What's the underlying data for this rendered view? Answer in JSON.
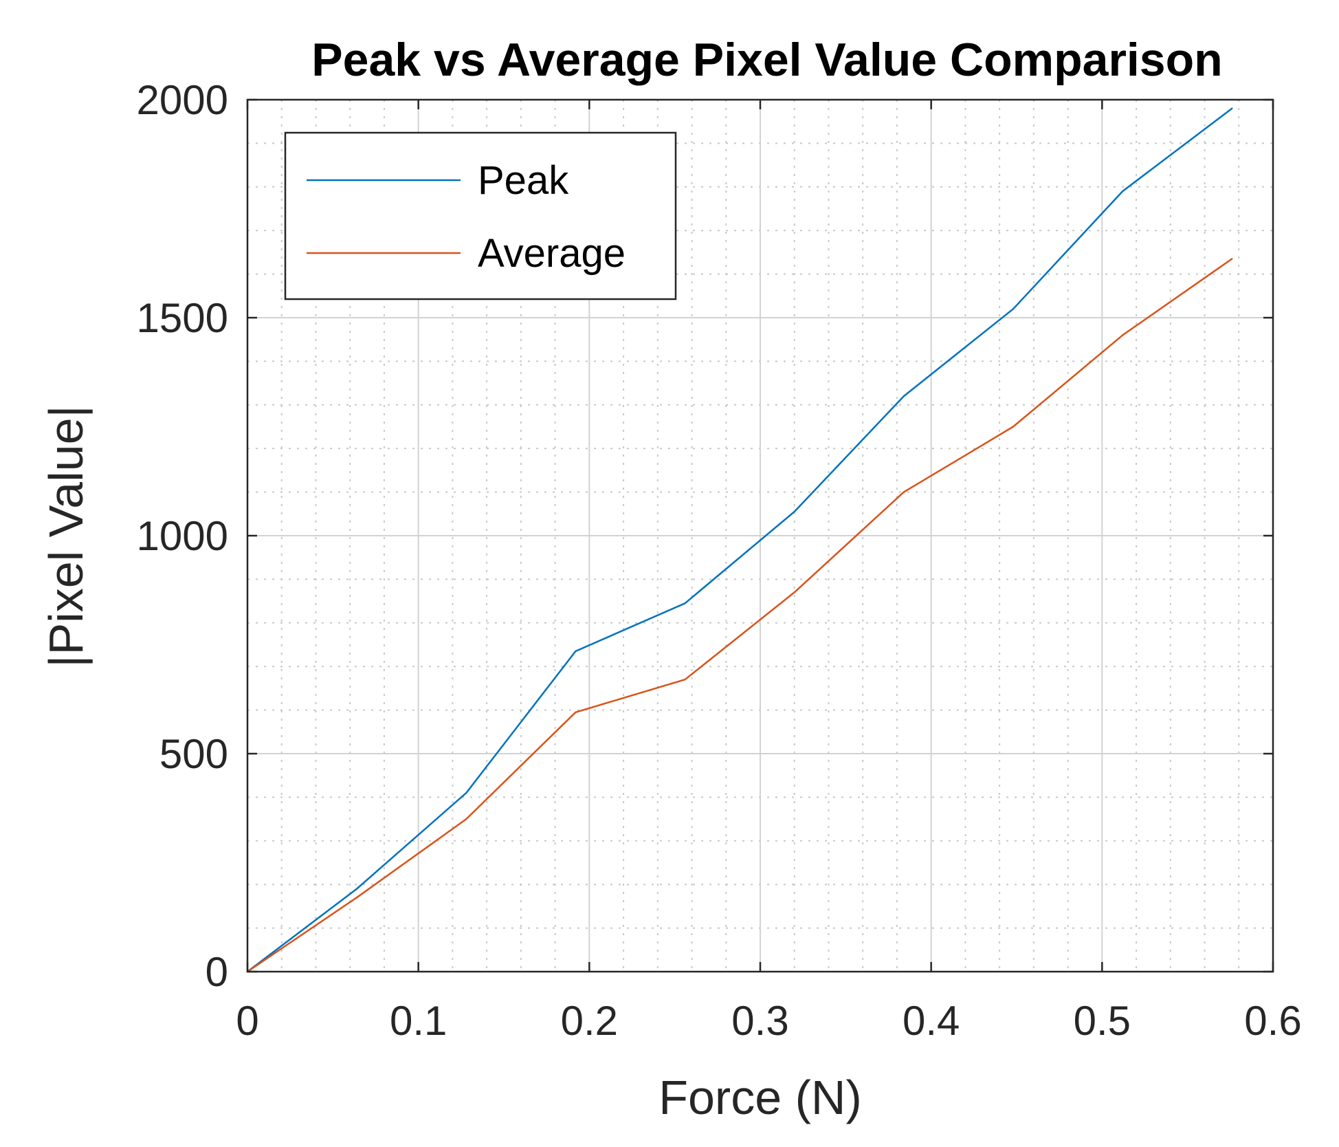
{
  "chart_data": {
    "type": "line",
    "title": "Peak vs Average Pixel Value Comparison",
    "xlabel": "Force (N)",
    "ylabel": "|Pixel Value|",
    "xlim": [
      0,
      0.6
    ],
    "ylim": [
      0,
      2000
    ],
    "xticks": [
      0,
      0.1,
      0.2,
      0.3,
      0.4,
      0.5,
      0.6
    ],
    "xtick_labels": [
      "0",
      "0.1",
      "0.2",
      "0.3",
      "0.4",
      "0.5",
      "0.6"
    ],
    "yticks": [
      0,
      500,
      1000,
      1500,
      2000
    ],
    "ytick_labels": [
      "0",
      "500",
      "1000",
      "1500",
      "2000"
    ],
    "grid": true,
    "minor_grid": true,
    "legend_position": "top-left",
    "x": [
      0,
      0.064,
      0.128,
      0.192,
      0.256,
      0.32,
      0.384,
      0.448,
      0.512,
      0.576
    ],
    "series": [
      {
        "name": "Peak",
        "color": "#0072BD",
        "values": [
          0,
          190,
          410,
          735,
          845,
          1055,
          1320,
          1520,
          1790,
          1980
        ]
      },
      {
        "name": "Average",
        "color": "#D95319",
        "values": [
          0,
          170,
          350,
          595,
          670,
          870,
          1100,
          1250,
          1460,
          1635
        ]
      }
    ]
  }
}
